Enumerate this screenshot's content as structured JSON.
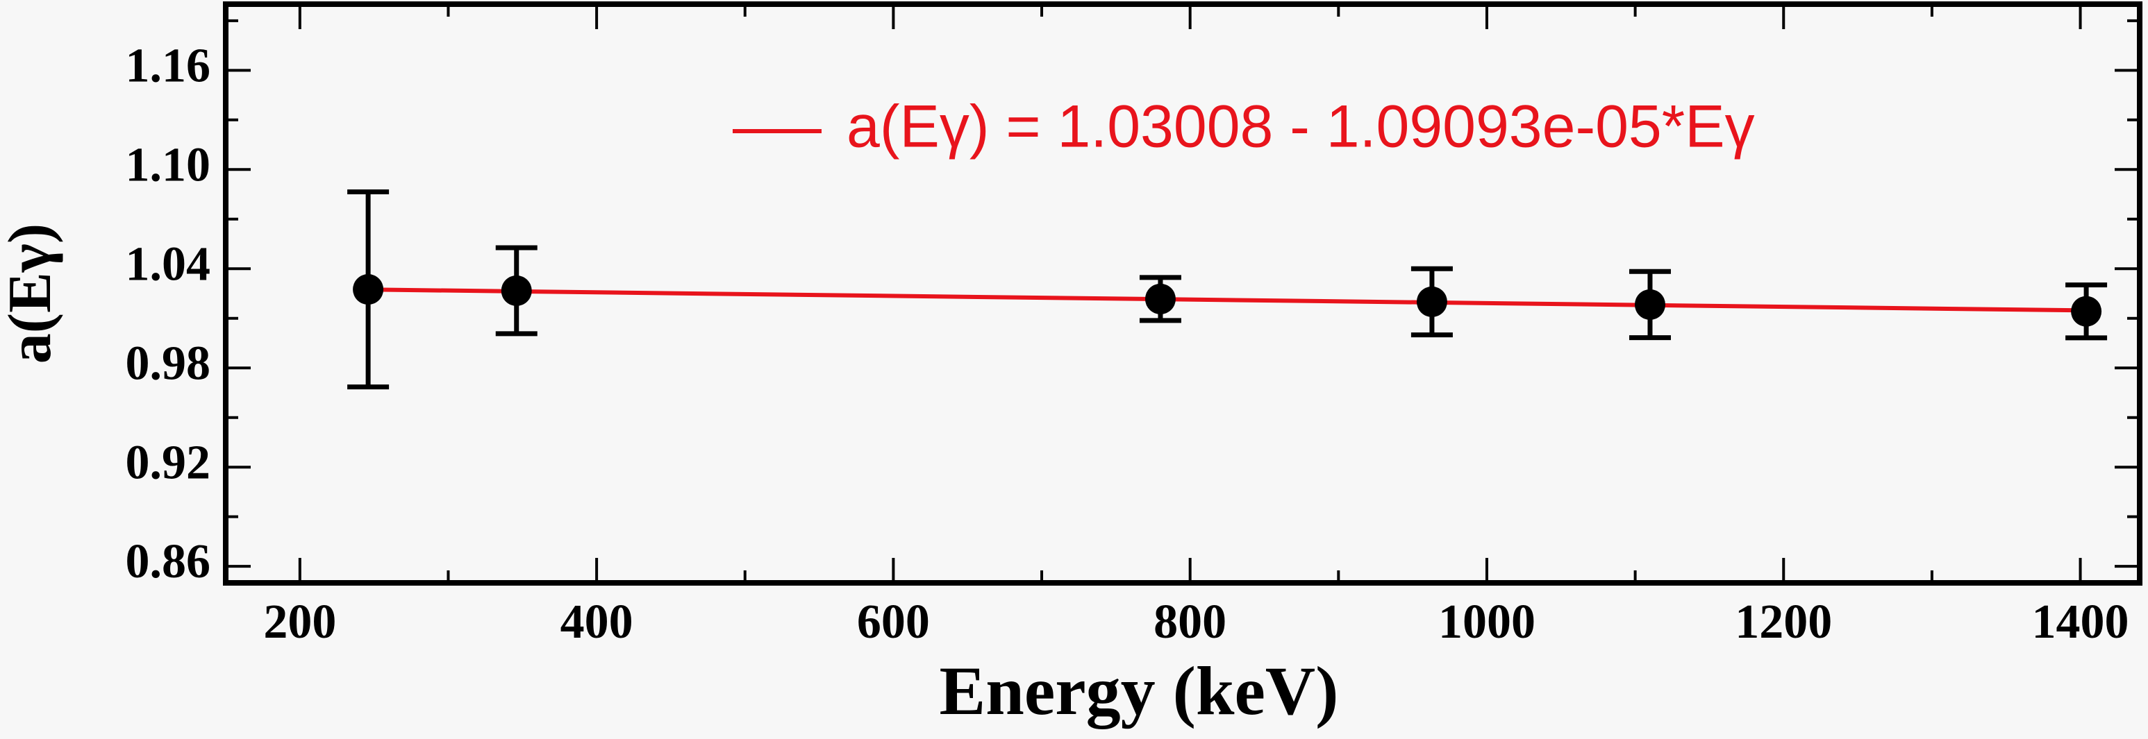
{
  "chart_data": {
    "type": "scatter",
    "xlabel": "Energy (keV)",
    "ylabel": "a(Eγ)",
    "xlim": [
      150,
      1440
    ],
    "ylim": [
      0.85,
      1.2
    ],
    "xticks": [
      200,
      400,
      600,
      800,
      1000,
      1200,
      1400
    ],
    "yticks": [
      0.86,
      0.92,
      0.98,
      1.04,
      {
        "value": 1.1,
        "label": "1.10"
      },
      1.16
    ],
    "xminor": [
      300,
      500,
      700,
      900,
      1100,
      1300
    ],
    "yminor": [
      0.89,
      0.95,
      1.01,
      1.07,
      1.13,
      1.19
    ],
    "series": [
      {
        "kind": "points",
        "color": "#000000",
        "x": [
          246,
          346,
          780,
          963,
          1110,
          1404
        ],
        "values": [
          1.0275,
          1.0267,
          1.0217,
          1.02,
          1.0183,
          1.0142
        ],
        "errors": [
          0.059,
          0.026,
          0.013,
          0.02,
          0.02,
          0.016
        ]
      },
      {
        "kind": "line",
        "name": "a(Eγ) = 1.03008 - 1.09093e-05*Eγ",
        "color": "#e8141c",
        "x": [
          246,
          1410
        ],
        "values": [
          1.0274,
          1.0147
        ]
      }
    ]
  }
}
